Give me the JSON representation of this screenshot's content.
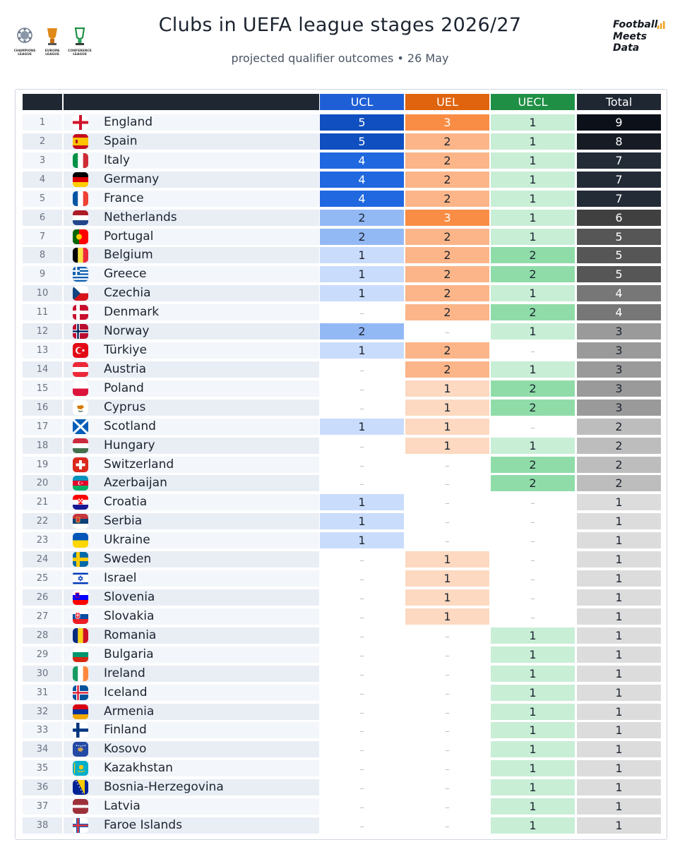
{
  "header": {
    "title": "Clubs in UEFA league stages 2026/27",
    "subtitle": "projected qualifier outcomes  •  26 May",
    "brand_lines": [
      "Football",
      "Meets",
      "Data"
    ],
    "logos": [
      {
        "icon": "champions-league-logo-icon",
        "text": "CHAMPIONS LEAGUE"
      },
      {
        "icon": "europa-league-logo-icon",
        "text": "EUROPA LEAGUE"
      },
      {
        "icon": "conference-league-logo-icon",
        "text": "CONFERENCE LEAGUE"
      }
    ]
  },
  "chart_data": {
    "type": "table",
    "columns": [
      "UCL",
      "UEL",
      "UECL",
      "Total"
    ],
    "column_colors": [
      "#1f5fd6",
      "#e0630e",
      "#1f8f45",
      "#1f2733"
    ],
    "empty_marker": "–",
    "rows": [
      {
        "rank": "1",
        "country": "England",
        "flag": "england-flag-icon",
        "ucl": 5,
        "uel": 3,
        "uecl": 1,
        "total": 9
      },
      {
        "rank": "2",
        "country": "Spain",
        "flag": "spain-flag-icon",
        "ucl": 5,
        "uel": 2,
        "uecl": 1,
        "total": 8
      },
      {
        "rank": "3",
        "country": "Italy",
        "flag": "italy-flag-icon",
        "ucl": 4,
        "uel": 2,
        "uecl": 1,
        "total": 7
      },
      {
        "rank": "4",
        "country": "Germany",
        "flag": "germany-flag-icon",
        "ucl": 4,
        "uel": 2,
        "uecl": 1,
        "total": 7
      },
      {
        "rank": "5",
        "country": "France",
        "flag": "france-flag-icon",
        "ucl": 4,
        "uel": 2,
        "uecl": 1,
        "total": 7
      },
      {
        "rank": "6",
        "country": "Netherlands",
        "flag": "netherlands-flag-icon",
        "ucl": 2,
        "uel": 3,
        "uecl": 1,
        "total": 6
      },
      {
        "rank": "7",
        "country": "Portugal",
        "flag": "portugal-flag-icon",
        "ucl": 2,
        "uel": 2,
        "uecl": 1,
        "total": 5
      },
      {
        "rank": "8",
        "country": "Belgium",
        "flag": "belgium-flag-icon",
        "ucl": 1,
        "uel": 2,
        "uecl": 2,
        "total": 5
      },
      {
        "rank": "9",
        "country": "Greece",
        "flag": "greece-flag-icon",
        "ucl": 1,
        "uel": 2,
        "uecl": 2,
        "total": 5
      },
      {
        "rank": "10",
        "country": "Czechia",
        "flag": "czechia-flag-icon",
        "ucl": 1,
        "uel": 2,
        "uecl": 1,
        "total": 4
      },
      {
        "rank": "11",
        "country": "Denmark",
        "flag": "denmark-flag-icon",
        "ucl": null,
        "uel": 2,
        "uecl": 2,
        "total": 4
      },
      {
        "rank": "12",
        "country": "Norway",
        "flag": "norway-flag-icon",
        "ucl": 2,
        "uel": null,
        "uecl": 1,
        "total": 3
      },
      {
        "rank": "13",
        "country": "Türkiye",
        "flag": "turkiye-flag-icon",
        "ucl": 1,
        "uel": 2,
        "uecl": null,
        "total": 3
      },
      {
        "rank": "14",
        "country": "Austria",
        "flag": "austria-flag-icon",
        "ucl": null,
        "uel": 2,
        "uecl": 1,
        "total": 3
      },
      {
        "rank": "15",
        "country": "Poland",
        "flag": "poland-flag-icon",
        "ucl": null,
        "uel": 1,
        "uecl": 2,
        "total": 3
      },
      {
        "rank": "16",
        "country": "Cyprus",
        "flag": "cyprus-flag-icon",
        "ucl": null,
        "uel": 1,
        "uecl": 2,
        "total": 3
      },
      {
        "rank": "17",
        "country": "Scotland",
        "flag": "scotland-flag-icon",
        "ucl": 1,
        "uel": 1,
        "uecl": null,
        "total": 2
      },
      {
        "rank": "18",
        "country": "Hungary",
        "flag": "hungary-flag-icon",
        "ucl": null,
        "uel": 1,
        "uecl": 1,
        "total": 2
      },
      {
        "rank": "19",
        "country": "Switzerland",
        "flag": "switzerland-flag-icon",
        "ucl": null,
        "uel": null,
        "uecl": 2,
        "total": 2
      },
      {
        "rank": "20",
        "country": "Azerbaijan",
        "flag": "azerbaijan-flag-icon",
        "ucl": null,
        "uel": null,
        "uecl": 2,
        "total": 2
      },
      {
        "rank": "21",
        "country": "Croatia",
        "flag": "croatia-flag-icon",
        "ucl": 1,
        "uel": null,
        "uecl": null,
        "total": 1
      },
      {
        "rank": "22",
        "country": "Serbia",
        "flag": "serbia-flag-icon",
        "ucl": 1,
        "uel": null,
        "uecl": null,
        "total": 1
      },
      {
        "rank": "23",
        "country": "Ukraine",
        "flag": "ukraine-flag-icon",
        "ucl": 1,
        "uel": null,
        "uecl": null,
        "total": 1
      },
      {
        "rank": "24",
        "country": "Sweden",
        "flag": "sweden-flag-icon",
        "ucl": null,
        "uel": 1,
        "uecl": null,
        "total": 1
      },
      {
        "rank": "25",
        "country": "Israel",
        "flag": "israel-flag-icon",
        "ucl": null,
        "uel": 1,
        "uecl": null,
        "total": 1
      },
      {
        "rank": "26",
        "country": "Slovenia",
        "flag": "slovenia-flag-icon",
        "ucl": null,
        "uel": 1,
        "uecl": null,
        "total": 1
      },
      {
        "rank": "27",
        "country": "Slovakia",
        "flag": "slovakia-flag-icon",
        "ucl": null,
        "uel": 1,
        "uecl": null,
        "total": 1
      },
      {
        "rank": "28",
        "country": "Romania",
        "flag": "romania-flag-icon",
        "ucl": null,
        "uel": null,
        "uecl": 1,
        "total": 1
      },
      {
        "rank": "29",
        "country": "Bulgaria",
        "flag": "bulgaria-flag-icon",
        "ucl": null,
        "uel": null,
        "uecl": 1,
        "total": 1
      },
      {
        "rank": "30",
        "country": "Ireland",
        "flag": "ireland-flag-icon",
        "ucl": null,
        "uel": null,
        "uecl": 1,
        "total": 1
      },
      {
        "rank": "31",
        "country": "Iceland",
        "flag": "iceland-flag-icon",
        "ucl": null,
        "uel": null,
        "uecl": 1,
        "total": 1
      },
      {
        "rank": "32",
        "country": "Armenia",
        "flag": "armenia-flag-icon",
        "ucl": null,
        "uel": null,
        "uecl": 1,
        "total": 1
      },
      {
        "rank": "33",
        "country": "Finland",
        "flag": "finland-flag-icon",
        "ucl": null,
        "uel": null,
        "uecl": 1,
        "total": 1
      },
      {
        "rank": "34",
        "country": "Kosovo",
        "flag": "kosovo-flag-icon",
        "ucl": null,
        "uel": null,
        "uecl": 1,
        "total": 1
      },
      {
        "rank": "35",
        "country": "Kazakhstan",
        "flag": "kazakhstan-flag-icon",
        "ucl": null,
        "uel": null,
        "uecl": 1,
        "total": 1
      },
      {
        "rank": "36",
        "country": "Bosnia-Herzegovina",
        "flag": "bosnia-herzegovina-flag-icon",
        "ucl": null,
        "uel": null,
        "uecl": 1,
        "total": 1
      },
      {
        "rank": "37",
        "country": "Latvia",
        "flag": "latvia-flag-icon",
        "ucl": null,
        "uel": null,
        "uecl": 1,
        "total": 1
      },
      {
        "rank": "38",
        "country": "Faroe Islands",
        "flag": "faroe-islands-flag-icon",
        "ucl": null,
        "uel": null,
        "uecl": 1,
        "total": 1
      }
    ]
  }
}
